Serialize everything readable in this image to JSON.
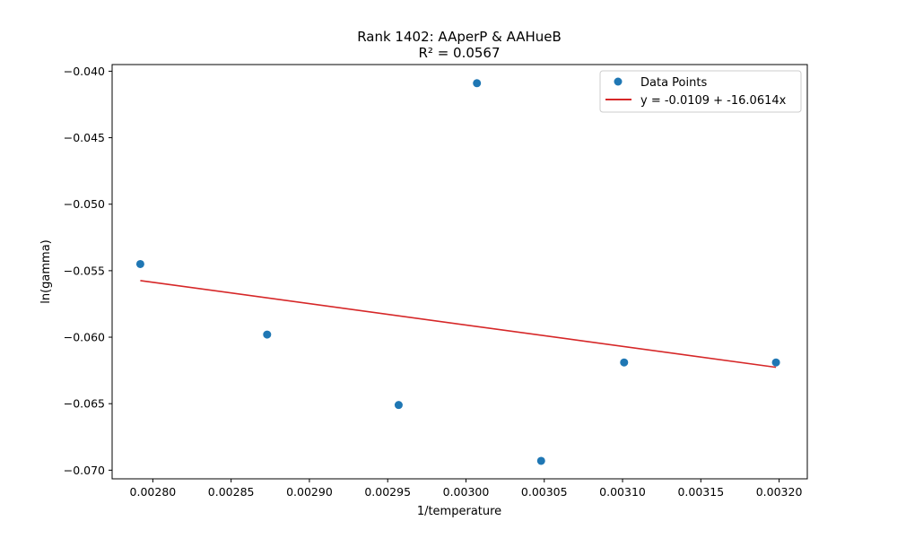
{
  "chart_data": {
    "type": "scatter",
    "title": "Rank 1402: AAperP & AAHueB",
    "subtitle": "R² = 0.0567",
    "xlabel": "1/temperature",
    "ylabel": "ln(gamma)",
    "xlim": [
      0.002774,
      0.003218
    ],
    "ylim": [
      -0.07065,
      -0.0395
    ],
    "x_ticks": [
      0.0028,
      0.00285,
      0.0029,
      0.00295,
      0.003,
      0.00305,
      0.0031,
      0.00315,
      0.0032
    ],
    "x_tick_labels": [
      "0.00280",
      "0.00285",
      "0.00290",
      "0.00295",
      "0.00300",
      "0.00305",
      "0.00310",
      "0.00315",
      "0.00320"
    ],
    "y_ticks": [
      -0.04,
      -0.045,
      -0.05,
      -0.055,
      -0.06,
      -0.065,
      -0.07
    ],
    "y_tick_labels": [
      "−0.040",
      "−0.045",
      "−0.050",
      "−0.055",
      "−0.060",
      "−0.065",
      "−0.070"
    ],
    "grid": false,
    "legend_position": "top-right",
    "series": [
      {
        "name": "Data Points",
        "kind": "scatter",
        "color": "#1f77b4",
        "x": [
          0.002792,
          0.002873,
          0.002957,
          0.003007,
          0.003048,
          0.003101,
          0.003198
        ],
        "y": [
          -0.0545,
          -0.0598,
          -0.0651,
          -0.0409,
          -0.0693,
          -0.0619,
          -0.0619
        ]
      },
      {
        "name": "y = -0.0109 + -16.0614x",
        "kind": "line",
        "color": "#d62728",
        "intercept": -0.0109,
        "slope": -16.0614,
        "x_range": [
          0.002792,
          0.003198
        ]
      }
    ]
  }
}
